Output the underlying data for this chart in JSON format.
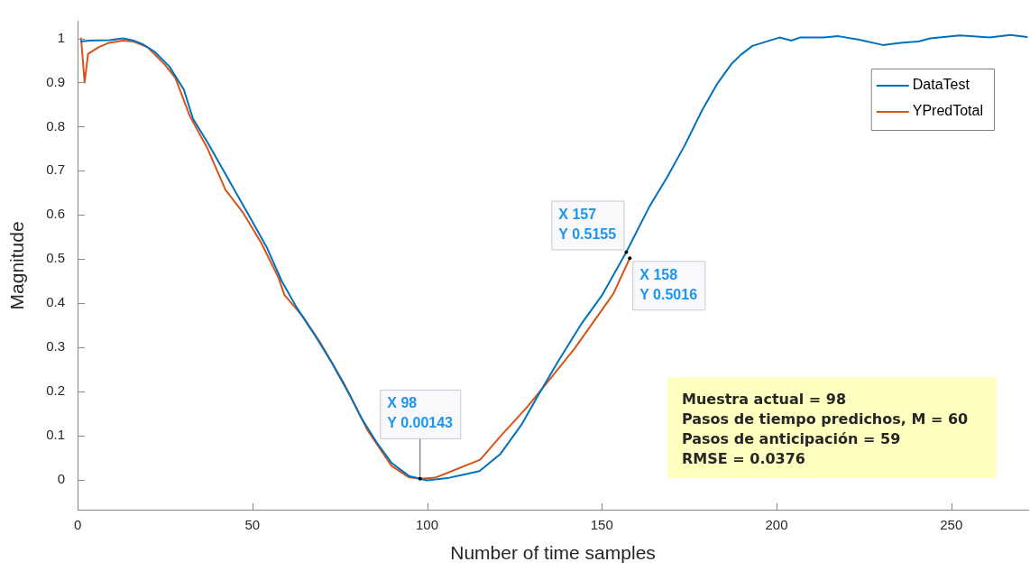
{
  "chart_data": {
    "type": "line",
    "xlabel": "Number of time samples",
    "ylabel": "Magnitude",
    "xlim": [
      0,
      272
    ],
    "ylim": [
      -0.07,
      1.04
    ],
    "xticks": [
      0,
      50,
      100,
      150,
      200,
      250
    ],
    "yticks": [
      0,
      0.1,
      0.2,
      0.3,
      0.4,
      0.5,
      0.6,
      0.7,
      0.8,
      0.9,
      1
    ],
    "grid": false,
    "legend": "top right",
    "marker": "none",
    "line_style": "solid",
    "series": [
      {
        "name": "DataTest",
        "color": "#0072bd",
        "x": [
          1,
          3.3,
          9.2,
          13,
          16,
          18.6,
          22,
          26.2,
          30.4,
          33,
          37.2,
          41.4,
          45.7,
          49,
          54.2,
          58.4,
          62.6,
          68.6,
          72.8,
          77.9,
          81.3,
          85.5,
          89.8,
          94.8,
          100,
          105.8,
          115,
          121,
          127,
          131.3,
          137.2,
          144,
          150,
          157,
          163.5,
          168.6,
          173.7,
          178.7,
          183,
          187.2,
          189.8,
          193.1,
          200.8,
          204.2,
          206.7,
          213.5,
          217.7,
          223.6,
          230.4,
          235.5,
          240.6,
          244,
          252.5,
          261,
          266.9,
          271.6
        ],
        "values": [
          0.993,
          0.995,
          0.996,
          1.0,
          0.995,
          0.987,
          0.97,
          0.937,
          0.884,
          0.818,
          0.764,
          0.705,
          0.645,
          0.599,
          0.525,
          0.45,
          0.391,
          0.318,
          0.264,
          0.191,
          0.138,
          0.085,
          0.038,
          0.008,
          -0.002,
          0.003,
          0.019,
          0.058,
          0.124,
          0.184,
          0.264,
          0.351,
          0.417,
          0.5155,
          0.617,
          0.684,
          0.757,
          0.837,
          0.897,
          0.943,
          0.963,
          0.983,
          1.002,
          0.995,
          1.002,
          1.002,
          1.005,
          0.997,
          0.985,
          0.99,
          0.993,
          1.0,
          1.007,
          1.002,
          1.008,
          1.003
        ]
      },
      {
        "name": "YPredTotal",
        "color": "#d95319",
        "x": [
          1,
          2,
          3,
          6,
          9,
          13,
          16,
          20,
          25,
          28,
          32.1,
          37.2,
          42.3,
          47.4,
          52.5,
          57.5,
          59.2,
          64.3,
          69.4,
          76.2,
          83,
          89.8,
          94.8,
          98,
          102.3,
          115.2,
          121,
          128.6,
          135.5,
          142.3,
          148.2,
          153.3,
          158
        ],
        "values": [
          1.0,
          0.9,
          0.965,
          0.98,
          0.99,
          0.995,
          0.993,
          0.98,
          0.94,
          0.91,
          0.824,
          0.75,
          0.657,
          0.604,
          0.537,
          0.457,
          0.418,
          0.371,
          0.311,
          0.218,
          0.111,
          0.031,
          0.005,
          0.00143,
          0.004,
          0.045,
          0.098,
          0.164,
          0.231,
          0.298,
          0.364,
          0.421,
          0.5016
        ]
      }
    ],
    "annotations": [
      {
        "text": "X 98\nY 0.00143",
        "x": 98,
        "y": 0.00143
      },
      {
        "text": "X 157\nY 0.5155",
        "x": 157,
        "y": 0.5155
      },
      {
        "text": "X 158\nY 0.5016",
        "x": 158,
        "y": 0.5016
      },
      "Muestra actual = 98",
      "Pasos de tiempo predichos, M = 60",
      "Pasos de anticipación = 59",
      "RMSE = 0.0376"
    ]
  }
}
